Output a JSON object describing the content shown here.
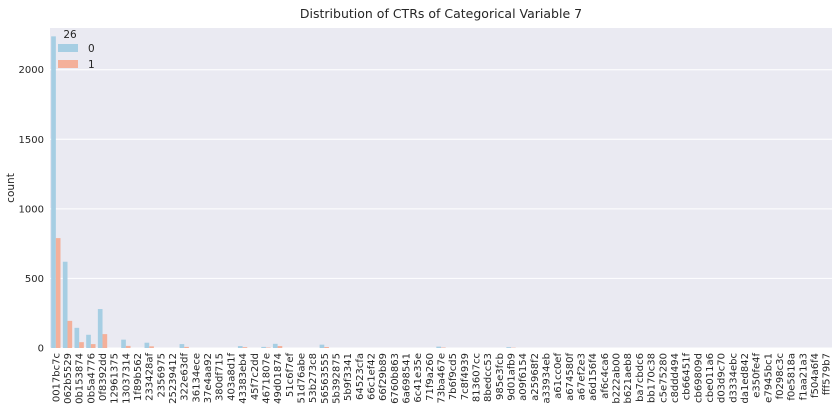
{
  "chart_data": {
    "type": "bar",
    "title": "Distribution of CTRs of Categorical Variable 7",
    "xlabel": "",
    "ylabel": "count",
    "ylim": [
      0,
      2300
    ],
    "yticks": [
      0,
      500,
      1000,
      1500,
      2000
    ],
    "grid": true,
    "legend": {
      "title": "26",
      "placement": "top-left"
    },
    "categories": [
      "0017bc7c",
      "062b5529",
      "0b153874",
      "0b5a4776",
      "0f8392dd",
      "12961375",
      "13037314",
      "1f89b562",
      "233428af",
      "2356975",
      "25239412",
      "322e63df",
      "36134ece",
      "37e4aa92",
      "380df715",
      "403a8d1f",
      "43383eb4",
      "45f7c2dd",
      "4671807e",
      "49d01874",
      "51c6f7ef",
      "51d76abe",
      "53b273c8",
      "56563555",
      "5b392875",
      "5b9f3341",
      "64523cfa",
      "66c1ef42",
      "66f29b89",
      "6760b863",
      "6a698541",
      "6c41e35e",
      "71f9a260",
      "73ba467e",
      "7b6f9cd5",
      "7c8f4939",
      "813607cc",
      "8bedcc53",
      "985e3fcb",
      "9d01afb9",
      "a09f6154",
      "a25968f2",
      "a33934eb",
      "a61cc0ef",
      "a674580f",
      "a67ef2e3",
      "a6d156f4",
      "af6c4ca6",
      "b222ab00",
      "b621aeb8",
      "ba7cbdc6",
      "bb170c38",
      "c5e75280",
      "c8ddd494",
      "cb66451f",
      "cb69809d",
      "cbe011a6",
      "d03d9c70",
      "d3334ebc",
      "da1ed842",
      "e350fe4f",
      "e7945bc1",
      "f0298c3c",
      "f0e5818a",
      "f1aa21a3",
      "f504a6f4",
      "fff579b7"
    ],
    "series": [
      {
        "name": "0",
        "color": "#a6cee3",
        "values": [
          2240,
          620,
          145,
          95,
          280,
          0,
          60,
          0,
          38,
          0,
          0,
          28,
          0,
          0,
          0,
          0,
          14,
          0,
          8,
          30,
          0,
          0,
          0,
          24,
          0,
          0,
          0,
          0,
          0,
          0,
          0,
          0,
          0,
          10,
          0,
          0,
          0,
          0,
          0,
          6,
          0,
          0,
          0,
          0,
          0,
          0,
          0,
          0,
          0,
          0,
          0,
          0,
          0,
          0,
          0,
          0,
          0,
          0,
          0,
          0,
          0,
          0,
          0,
          0,
          0,
          0,
          0
        ]
      },
      {
        "name": "1",
        "color": "#f4b09a",
        "values": [
          790,
          195,
          42,
          28,
          100,
          0,
          15,
          0,
          12,
          0,
          0,
          8,
          0,
          0,
          0,
          0,
          6,
          0,
          3,
          14,
          0,
          0,
          0,
          7,
          0,
          0,
          0,
          0,
          0,
          0,
          0,
          0,
          0,
          3,
          0,
          0,
          0,
          0,
          0,
          2,
          0,
          0,
          0,
          0,
          0,
          0,
          0,
          0,
          0,
          0,
          0,
          0,
          0,
          0,
          0,
          0,
          0,
          0,
          0,
          0,
          0,
          0,
          0,
          0,
          0,
          0,
          0
        ]
      }
    ]
  }
}
